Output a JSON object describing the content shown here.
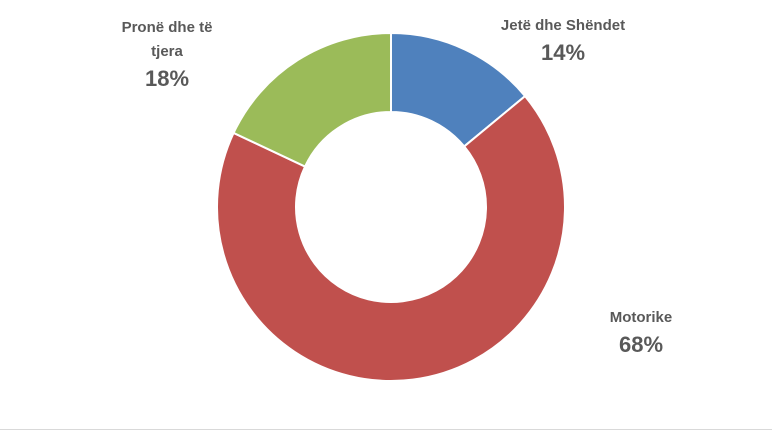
{
  "chart_data": {
    "type": "donut",
    "categories": [
      "Jetë dhe Shëndet",
      "Motorike",
      "Pronë dhe të tjera"
    ],
    "values": [
      14,
      68,
      18
    ],
    "value_labels": [
      "14%",
      "68%",
      "18%"
    ],
    "colors": [
      "#4f81bd",
      "#c0504d",
      "#9bbb59"
    ]
  }
}
